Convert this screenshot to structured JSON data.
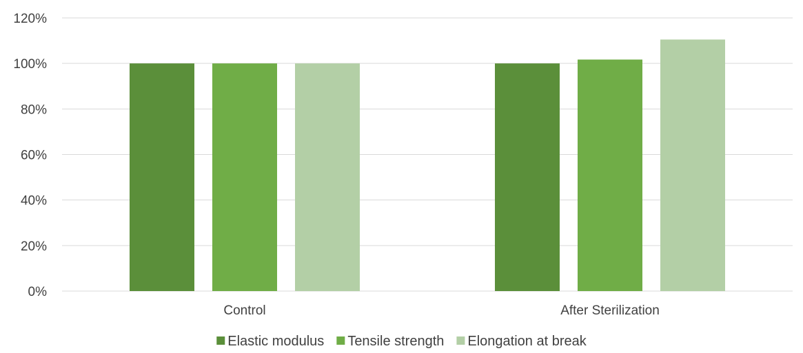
{
  "chart_data": {
    "type": "bar",
    "categories": [
      "Control",
      "After Sterilization"
    ],
    "series": [
      {
        "name": "Elastic modulus",
        "values": [
          100,
          100
        ],
        "color": "#5b8f3a"
      },
      {
        "name": "Tensile strength",
        "values": [
          100,
          101.7
        ],
        "color": "#70ad47"
      },
      {
        "name": "Elongation at break",
        "values": [
          100,
          110.5
        ],
        "color": "#b3cfa6"
      }
    ],
    "title": "",
    "xlabel": "",
    "ylabel": "",
    "ylim": [
      0,
      120
    ],
    "yticks": [
      0,
      20,
      40,
      60,
      80,
      100,
      120
    ],
    "ytick_format": "%",
    "grid": true,
    "legend_position": "bottom",
    "gridline_color": "#d9d9d9",
    "axis_line_color": "#d9d9d9"
  }
}
